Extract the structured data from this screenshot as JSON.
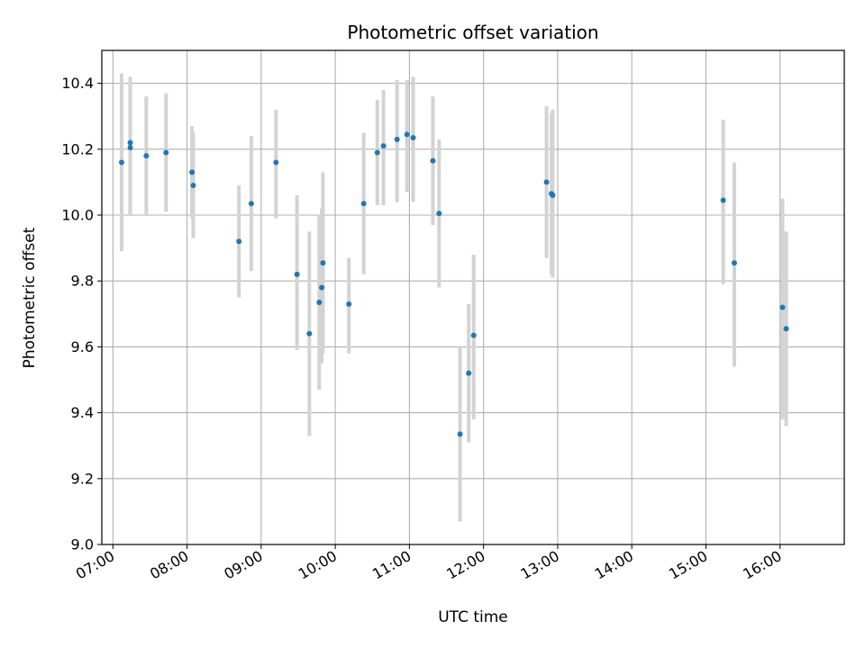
{
  "chart_data": {
    "type": "scatter",
    "title": "Photometric offset variation",
    "xlabel": "UTC time",
    "ylabel": "Photometric offset",
    "x_unit": "time of day (UTC)",
    "xlim": [
      "06:51",
      "16:52"
    ],
    "ylim": [
      9.0,
      10.5
    ],
    "grid": true,
    "x_ticks": [
      "07:00",
      "08:00",
      "09:00",
      "10:00",
      "11:00",
      "12:00",
      "13:00",
      "14:00",
      "15:00",
      "16:00"
    ],
    "y_ticks": [
      "9.0",
      "9.2",
      "9.4",
      "9.6",
      "9.8",
      "10.0",
      "10.2",
      "10.4"
    ],
    "point_color": "#1f77b4",
    "errorbar_color": "#d3d3d3",
    "points": [
      {
        "t": "07:07",
        "y": 10.16,
        "err_low": 9.89,
        "err_high": 10.43
      },
      {
        "t": "07:14",
        "y": 10.22,
        "err_low": 10.0,
        "err_high": 10.42
      },
      {
        "t": "07:14",
        "y": 10.205,
        "err_low": 10.0,
        "err_high": 10.41
      },
      {
        "t": "07:27",
        "y": 10.18,
        "err_low": 10.0,
        "err_high": 10.36
      },
      {
        "t": "07:43",
        "y": 10.19,
        "err_low": 10.01,
        "err_high": 10.37
      },
      {
        "t": "08:04",
        "y": 10.13,
        "err_low": 9.99,
        "err_high": 10.27
      },
      {
        "t": "08:05",
        "y": 10.09,
        "err_low": 9.93,
        "err_high": 10.25
      },
      {
        "t": "08:42",
        "y": 9.92,
        "err_low": 9.75,
        "err_high": 10.09
      },
      {
        "t": "08:52",
        "y": 10.035,
        "err_low": 9.83,
        "err_high": 10.24
      },
      {
        "t": "09:12",
        "y": 10.16,
        "err_low": 9.99,
        "err_high": 10.32
      },
      {
        "t": "09:29",
        "y": 9.82,
        "err_low": 9.59,
        "err_high": 10.06
      },
      {
        "t": "09:39",
        "y": 9.64,
        "err_low": 9.33,
        "err_high": 9.95
      },
      {
        "t": "09:47",
        "y": 9.735,
        "err_low": 9.47,
        "err_high": 10.0
      },
      {
        "t": "09:49",
        "y": 9.78,
        "err_low": 9.55,
        "err_high": 10.02
      },
      {
        "t": "09:50",
        "y": 9.855,
        "err_low": 9.58,
        "err_high": 10.13
      },
      {
        "t": "10:11",
        "y": 9.73,
        "err_low": 9.58,
        "err_high": 9.87
      },
      {
        "t": "10:23",
        "y": 10.035,
        "err_low": 9.82,
        "err_high": 10.25
      },
      {
        "t": "10:34",
        "y": 10.19,
        "err_low": 10.03,
        "err_high": 10.35
      },
      {
        "t": "10:39",
        "y": 10.21,
        "err_low": 10.03,
        "err_high": 10.38
      },
      {
        "t": "10:50",
        "y": 10.23,
        "err_low": 10.04,
        "err_high": 10.41
      },
      {
        "t": "10:58",
        "y": 10.245,
        "err_low": 10.07,
        "err_high": 10.41
      },
      {
        "t": "11:03",
        "y": 10.235,
        "err_low": 10.04,
        "err_high": 10.42
      },
      {
        "t": "11:19",
        "y": 10.165,
        "err_low": 9.97,
        "err_high": 10.36
      },
      {
        "t": "11:24",
        "y": 10.005,
        "err_low": 9.78,
        "err_high": 10.23
      },
      {
        "t": "11:41",
        "y": 9.335,
        "err_low": 9.07,
        "err_high": 9.6
      },
      {
        "t": "11:48",
        "y": 9.52,
        "err_low": 9.31,
        "err_high": 9.73
      },
      {
        "t": "11:52",
        "y": 9.635,
        "err_low": 9.38,
        "err_high": 9.88
      },
      {
        "t": "12:51",
        "y": 10.1,
        "err_low": 9.87,
        "err_high": 10.33
      },
      {
        "t": "12:55",
        "y": 10.065,
        "err_low": 9.82,
        "err_high": 10.31
      },
      {
        "t": "12:56",
        "y": 10.06,
        "err_low": 9.81,
        "err_high": 10.32
      },
      {
        "t": "15:14",
        "y": 10.045,
        "err_low": 9.79,
        "err_high": 10.29
      },
      {
        "t": "15:23",
        "y": 9.855,
        "err_low": 9.54,
        "err_high": 10.16
      },
      {
        "t": "16:02",
        "y": 9.72,
        "err_low": 9.38,
        "err_high": 10.05
      },
      {
        "t": "16:05",
        "y": 9.655,
        "err_low": 9.36,
        "err_high": 9.95
      }
    ]
  }
}
